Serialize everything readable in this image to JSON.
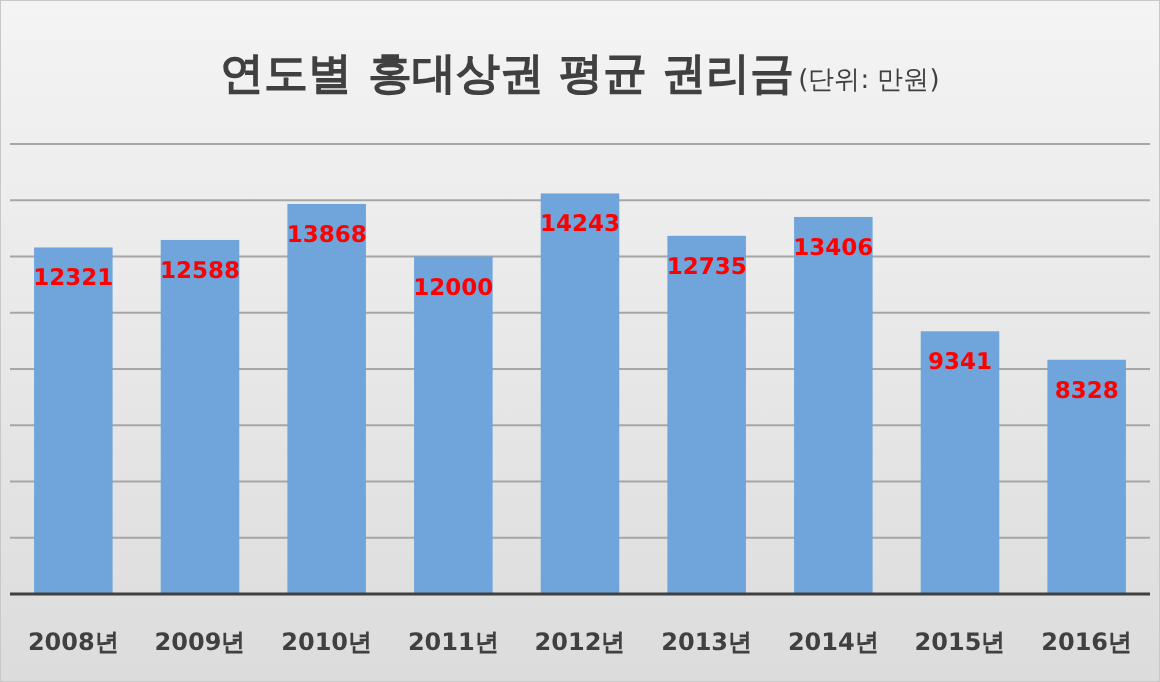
{
  "chart_data": {
    "type": "bar",
    "title": "연도별 홍대상권 평균 권리금",
    "subtitle": "(단위: 만원)",
    "categories": [
      "2008년",
      "2009년",
      "2010년",
      "2011년",
      "2012년",
      "2013년",
      "2014년",
      "2015년",
      "2016년"
    ],
    "values": [
      12321,
      12588,
      13868,
      12000,
      14243,
      12735,
      13406,
      9341,
      8328
    ],
    "color": "#6fa5db",
    "ylim": [
      0,
      16000
    ],
    "yticks": [
      {
        "value": 0,
        "label": null
      },
      {
        "value": 2000,
        "label": null
      },
      {
        "value": 4000,
        "label": null
      },
      {
        "value": 6000,
        "label": null
      },
      {
        "value": 8000,
        "label": null
      },
      {
        "value": 10000,
        "label": null
      },
      {
        "value": 12000,
        "label": null
      },
      {
        "value": 14000,
        "label": null
      },
      {
        "value": 16000,
        "label": null
      }
    ],
    "grid": "y",
    "data_labels": true
  }
}
